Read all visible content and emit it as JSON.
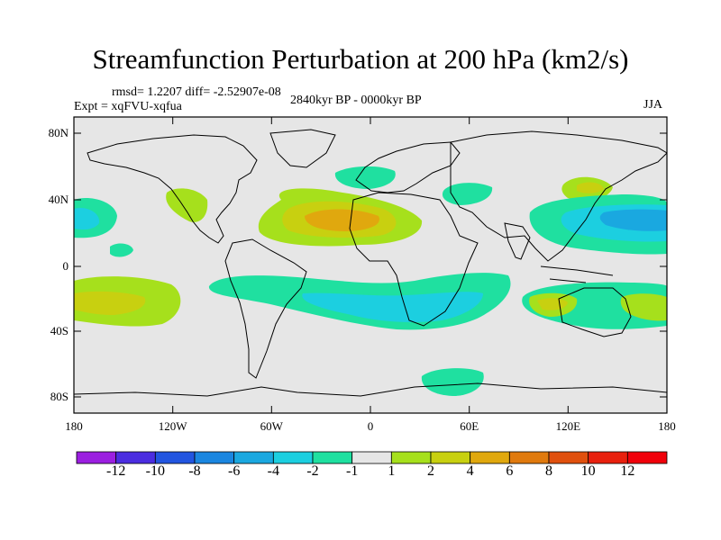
{
  "title": "Streamfunction Perturbation at 200 hPa (km2/s)",
  "stats": {
    "rmsd": "rmsd= 1.2207 diff= -2.52907e-08"
  },
  "experiment": "Expt = xqFVU-xqfua",
  "period": "2840kyr BP - 0000kyr BP",
  "season": "JJA",
  "y_ticks": [
    "80N",
    "40N",
    "0",
    "40S",
    "80S"
  ],
  "x_ticks": [
    "180",
    "120W",
    "60W",
    "0",
    "60E",
    "120E",
    "180"
  ],
  "colorbar": {
    "labels": [
      "-12",
      "-10",
      "-8",
      "-6",
      "-4",
      "-2",
      "-1",
      "1",
      "2",
      "4",
      "6",
      "8",
      "10",
      "12"
    ],
    "colors": [
      "#9b1fe0",
      "#4b2de0",
      "#2255e0",
      "#1a86e0",
      "#1aa8e0",
      "#1ccfe0",
      "#1fe0a0",
      "#e6e6e6",
      "#a6e01c",
      "#c8d010",
      "#e0a80e",
      "#e07a0e",
      "#e0500e",
      "#e8200e",
      "#f0000a"
    ]
  },
  "colors": {
    "neutral": "#e6e6e6",
    "pos1": "#a6e01c",
    "pos2": "#c8d010",
    "pos3": "#e0a80e",
    "neg1": "#1fe0a0",
    "neg2": "#1ccfe0",
    "neg3": "#1aa8e0"
  }
}
